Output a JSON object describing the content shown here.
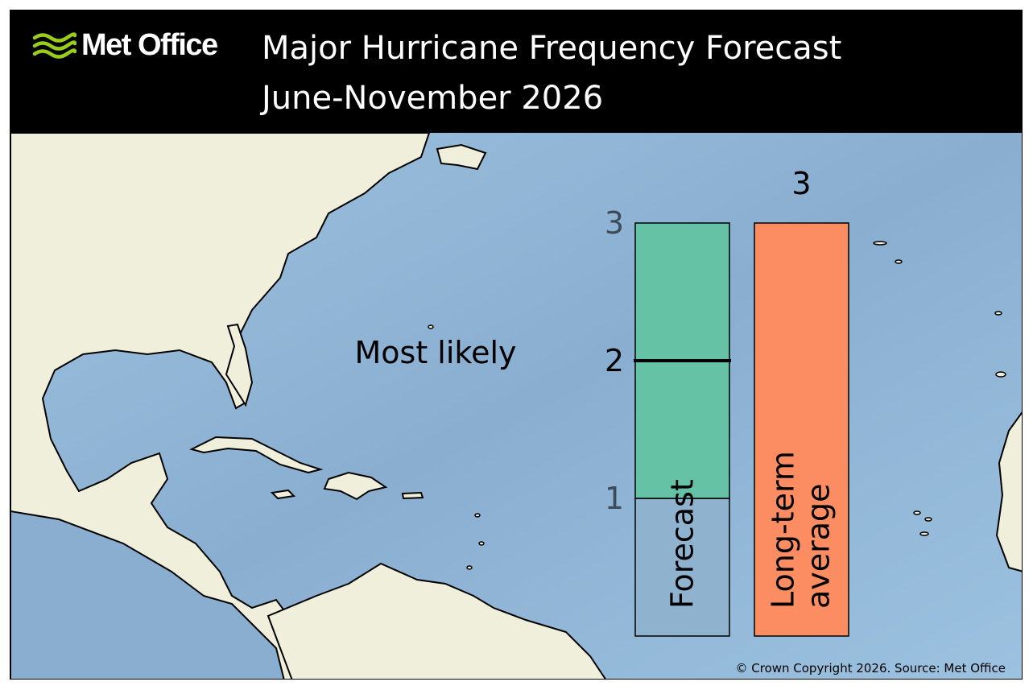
{
  "header": {
    "logo_text": "Met Office",
    "title": "Major Hurricane Frequency Forecast",
    "subtitle": "June-November 2026"
  },
  "colors": {
    "forecast_range": "#66c2a5",
    "forecast_below": "#8fb2cf",
    "long_term_average": "#fc8d62",
    "ocean": "#93b8d6",
    "land": "#efefdb",
    "logo_green": "#9acd1a"
  },
  "icons": {
    "logo": "met-office-wave-logo-icon"
  },
  "chart_data": {
    "type": "bar",
    "ylim": [
      0,
      3
    ],
    "most_likely_label": "Most likely",
    "forecast": {
      "label": "Forecast",
      "range": [
        1,
        3
      ],
      "most_likely": 2,
      "tick_labels": [
        "1",
        "2",
        "3"
      ]
    },
    "long_term_average": {
      "label_line1": "Long-term",
      "label_line2": "average",
      "value": 3,
      "value_label": "3"
    }
  },
  "footer": {
    "copyright": "© Crown Copyright 2026. Source: Met Office"
  }
}
